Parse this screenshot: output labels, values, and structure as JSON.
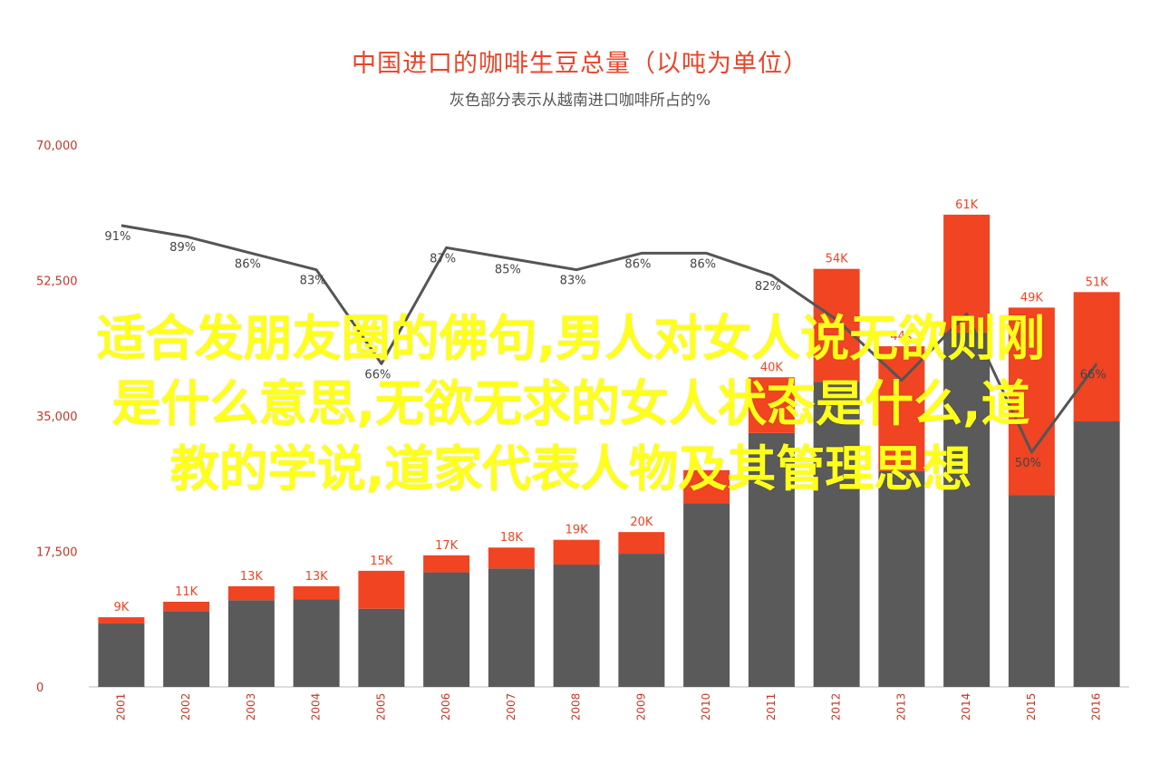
{
  "colors": {
    "base": "#5a5a5a",
    "top": "#f04423",
    "title": "#e8452a",
    "line": "#555555",
    "axis_tick": "#c0392b",
    "overlay": "#ffff1a"
  },
  "overlay": {
    "lines": [
      "适合发朋友圈的佛句,男人对女人说无欲则刚",
      "是什么意思,无欲无求的女人状态是什么,道",
      "教的学说,道家代表人物及其管理思想"
    ]
  },
  "chart_data": {
    "type": "bar",
    "title": "中国进口的咖啡生豆总量（以吨为单位）",
    "subtitle": "灰色部分表示从越南进口咖啡所占的%",
    "categories": [
      "2001",
      "2002",
      "2003",
      "2004",
      "2005",
      "2006",
      "2007",
      "2008",
      "2009",
      "2010",
      "2011",
      "2012",
      "2013",
      "2014",
      "2015",
      "2016"
    ],
    "stacked": true,
    "series": [
      {
        "values": [
          8200,
          9800,
          11200,
          11300,
          10100,
          14800,
          15300,
          15800,
          17200,
          23700,
          32800,
          39400,
          27900,
          45800,
          24800,
          34300
        ]
      },
      {
        "values": [
          800,
          1200,
          1800,
          1700,
          4900,
          2200,
          2700,
          3200,
          2800,
          4300,
          7200,
          14600,
          16100,
          15200,
          24200,
          16700
        ]
      }
    ],
    "total_labels": [
      "9K",
      "11K",
      "13K",
      "13K",
      "15K",
      "17K",
      "18K",
      "19K",
      "20K",
      "",
      "40K",
      "54K",
      "44K",
      "61K",
      "49K",
      "51K"
    ],
    "line": {
      "values": [
        91,
        89,
        86,
        83,
        66,
        87,
        85,
        83,
        86,
        86,
        82,
        74,
        63,
        75,
        50,
        66
      ],
      "labels": [
        "91%",
        "89%",
        "86%",
        "83%",
        "66%",
        "87%",
        "85%",
        "83%",
        "86%",
        "86%",
        "82%",
        "",
        "",
        "",
        "50%",
        "66%"
      ]
    },
    "y_ticks": [
      "0",
      "17,500",
      "35,000",
      "52,500",
      "70,000"
    ],
    "y_tick_values": [
      0,
      17500,
      35000,
      52500,
      70000
    ],
    "ylim": [
      0,
      70000
    ],
    "grid": false,
    "legend": "none"
  }
}
